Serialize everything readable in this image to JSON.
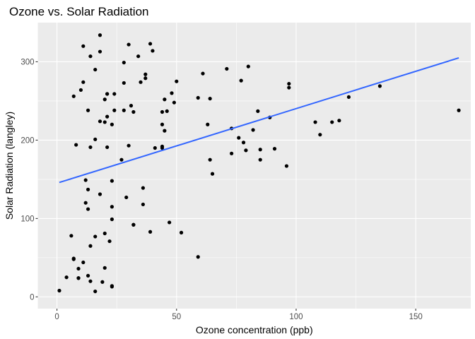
{
  "chart_data": {
    "type": "scatter",
    "title": "Ozone vs. Solar Radiation",
    "xlabel": "Ozone concentration (ppb)",
    "ylabel": "Solar Radiation (langley)",
    "xlim": [
      -8,
      173
    ],
    "ylim": [
      -15,
      350
    ],
    "xticks": [
      0,
      50,
      100,
      150
    ],
    "yticks": [
      0,
      100,
      200,
      300
    ],
    "grid": true,
    "background": "#EBEBEB",
    "point_color": "#000000",
    "trend_color": "#3366FF",
    "trend_line": {
      "type": "linear",
      "x": [
        1,
        168
      ],
      "y": [
        146,
        305
      ]
    },
    "points": [
      [
        41,
        190
      ],
      [
        36,
        118
      ],
      [
        12,
        149
      ],
      [
        18,
        313
      ],
      [
        28,
        299
      ],
      [
        23,
        99
      ],
      [
        19,
        19
      ],
      [
        8,
        194
      ],
      [
        7,
        256
      ],
      [
        16,
        290
      ],
      [
        11,
        274
      ],
      [
        14,
        65
      ],
      [
        18,
        334
      ],
      [
        14,
        307
      ],
      [
        34,
        307
      ],
      [
        6,
        78
      ],
      [
        30,
        322
      ],
      [
        11,
        44
      ],
      [
        1,
        8
      ],
      [
        11,
        320
      ],
      [
        4,
        25
      ],
      [
        32,
        92
      ],
      [
        23,
        13
      ],
      [
        45,
        252
      ],
      [
        115,
        223
      ],
      [
        37,
        279
      ],
      [
        44,
        220
      ],
      [
        29,
        127
      ],
      [
        71,
        291
      ],
      [
        39,
        323
      ],
      [
        23,
        148
      ],
      [
        21,
        191
      ],
      [
        37,
        284
      ],
      [
        20,
        37
      ],
      [
        12,
        120
      ],
      [
        13,
        137
      ],
      [
        135,
        269
      ],
      [
        49,
        248
      ],
      [
        32,
        236
      ],
      [
        64,
        175
      ],
      [
        40,
        314
      ],
      [
        77,
        276
      ],
      [
        97,
        267
      ],
      [
        97,
        272
      ],
      [
        85,
        175
      ],
      [
        10,
        264
      ],
      [
        27,
        175
      ],
      [
        7,
        48
      ],
      [
        48,
        260
      ],
      [
        35,
        274
      ],
      [
        61,
        285
      ],
      [
        79,
        187
      ],
      [
        63,
        220
      ],
      [
        16,
        7
      ],
      [
        80,
        294
      ],
      [
        108,
        223
      ],
      [
        20,
        81
      ],
      [
        52,
        82
      ],
      [
        82,
        213
      ],
      [
        50,
        275
      ],
      [
        64,
        253
      ],
      [
        59,
        254
      ],
      [
        39,
        83
      ],
      [
        9,
        24
      ],
      [
        16,
        77
      ],
      [
        122,
        255
      ],
      [
        89,
        229
      ],
      [
        110,
        207
      ],
      [
        44,
        192
      ],
      [
        28,
        273
      ],
      [
        65,
        157
      ],
      [
        22,
        71
      ],
      [
        59,
        51
      ],
      [
        23,
        115
      ],
      [
        31,
        244
      ],
      [
        44,
        190
      ],
      [
        21,
        259
      ],
      [
        9,
        36
      ],
      [
        45,
        212
      ],
      [
        168,
        238
      ],
      [
        73,
        215
      ],
      [
        76,
        203
      ],
      [
        118,
        225
      ],
      [
        84,
        237
      ],
      [
        85,
        188
      ],
      [
        96,
        167
      ],
      [
        78,
        197
      ],
      [
        73,
        183
      ],
      [
        91,
        189
      ],
      [
        47,
        95
      ],
      [
        32,
        92
      ],
      [
        20,
        252
      ],
      [
        23,
        220
      ],
      [
        21,
        230
      ],
      [
        24,
        259
      ],
      [
        44,
        236
      ],
      [
        21,
        259
      ],
      [
        28,
        238
      ],
      [
        9,
        24
      ],
      [
        13,
        112
      ],
      [
        46,
        237
      ],
      [
        18,
        224
      ],
      [
        13,
        27
      ],
      [
        24,
        238
      ],
      [
        16,
        201
      ],
      [
        13,
        238
      ],
      [
        23,
        14
      ],
      [
        36,
        139
      ],
      [
        7,
        49
      ],
      [
        14,
        20
      ],
      [
        30,
        193
      ],
      [
        14,
        191
      ],
      [
        18,
        131
      ],
      [
        20,
        223
      ]
    ]
  }
}
